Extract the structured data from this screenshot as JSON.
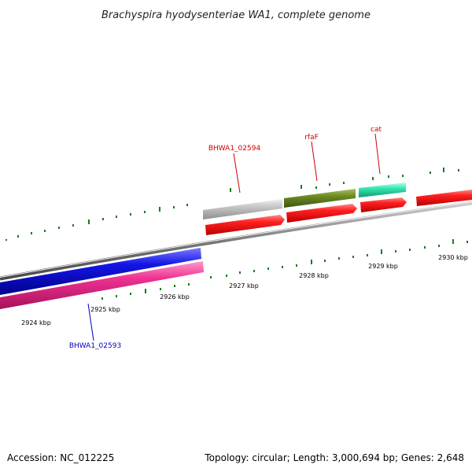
{
  "title": "Brachyspira hyodysenteriae WA1, complete genome",
  "footer": {
    "accession": "Accession: NC_012225",
    "summary": "Topology: circular; Length: 3,000,694 bp; Genes: 2,648"
  },
  "colors": {
    "backbone": "#8a8a8a",
    "tick": "#1d7a1d",
    "label_red": "#cc0000",
    "label_blue": "#0000bb",
    "cds_red": "#ee1111",
    "gene_blue": "#1010dd",
    "gene_pink": "#e8308a",
    "gene_gray": "#bdbdbd",
    "gene_olive": "#6b8a22",
    "gene_teal": "#33e6b0"
  },
  "scale_labels": [
    "2924 kbp",
    "2925 kbp",
    "2926 kbp",
    "2927 kbp",
    "2928 kbp",
    "2929 kbp",
    "2930 kbp"
  ],
  "gene_labels": [
    {
      "name": "BHWA1_02594",
      "strand": "top"
    },
    {
      "name": "rfaF",
      "strand": "top"
    },
    {
      "name": "cat",
      "strand": "top"
    },
    {
      "name": "BHWA1_02593",
      "strand": "bottom"
    }
  ]
}
